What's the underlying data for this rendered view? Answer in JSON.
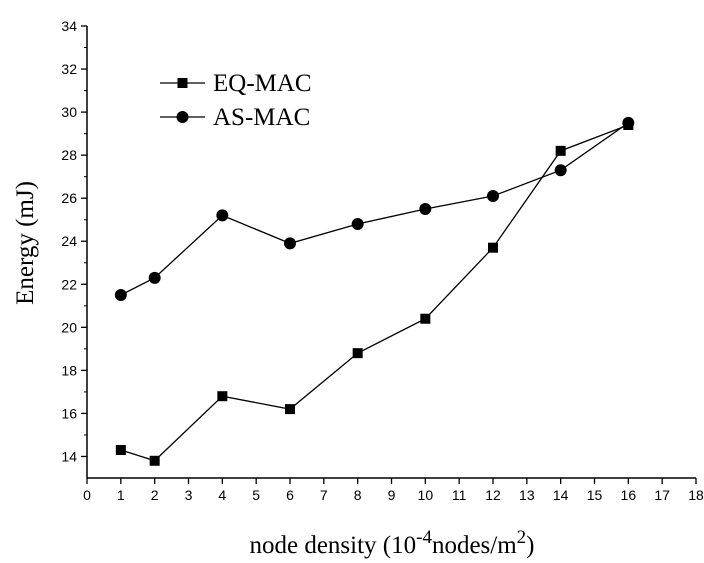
{
  "chart_data": {
    "type": "line",
    "title": "",
    "xlabel": {
      "base": "node density  (10",
      "exp": "-4",
      "unit": "nodes/m",
      "unit_exp": "2",
      "close": ")"
    },
    "ylabel": "Energy (mJ)",
    "xlim": [
      0,
      18
    ],
    "ylim": [
      13,
      34
    ],
    "xticks": [
      "0",
      "1",
      "2",
      "3",
      "4",
      "5",
      "6",
      "7",
      "8",
      "9",
      "10",
      "11",
      "12",
      "13",
      "14",
      "15",
      "16",
      "17",
      "18"
    ],
    "yticks": [
      "14",
      "16",
      "18",
      "20",
      "22",
      "24",
      "26",
      "28",
      "30",
      "32",
      "34"
    ],
    "legend_position": "top-left",
    "grid": false,
    "series": [
      {
        "name": "EQ-MAC",
        "marker": "square",
        "x": [
          1,
          2,
          4,
          6,
          8,
          10,
          12,
          14,
          16
        ],
        "y": [
          14.3,
          13.8,
          16.8,
          16.2,
          18.8,
          20.4,
          23.7,
          28.2,
          29.4
        ]
      },
      {
        "name": "AS-MAC",
        "marker": "circle",
        "x": [
          1,
          2,
          4,
          6,
          8,
          10,
          12,
          14,
          16
        ],
        "y": [
          21.5,
          22.3,
          25.2,
          23.9,
          24.8,
          25.5,
          26.1,
          27.3,
          29.5
        ]
      }
    ]
  }
}
